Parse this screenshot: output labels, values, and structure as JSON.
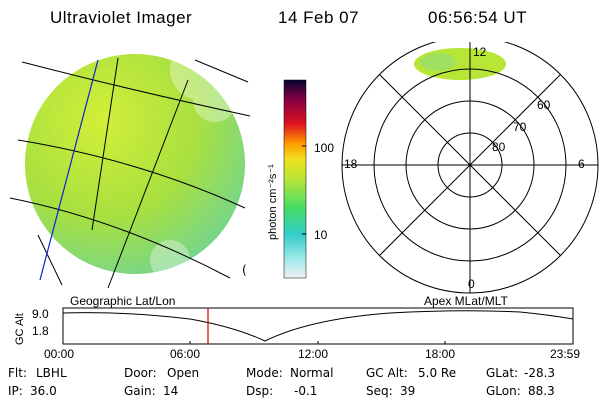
{
  "header": {
    "instrument": "Ultraviolet Imager",
    "date": "14 Feb 07",
    "time": "06:56:54 UT"
  },
  "colorbar": {
    "unit_label": "photon cm⁻²s⁻¹",
    "ticks": [
      "100",
      "10"
    ]
  },
  "polar_plot": {
    "mlt_labels": [
      "12",
      "18",
      "6",
      "0"
    ],
    "lat_labels": [
      "60",
      "70",
      "80"
    ]
  },
  "altitude_plot": {
    "left_title": "Geographic Lat/Lon",
    "right_title": "Apex  MLat/MLT",
    "y_axis_label": "GC Alt",
    "y_ticks": [
      "9.0",
      "1.8"
    ],
    "x_ticks": [
      "00:00",
      "06:00",
      "12:00",
      "18:00",
      "23:59"
    ]
  },
  "status": {
    "row1": [
      {
        "label": "Flt:",
        "value": "LBHL"
      },
      {
        "label": "Door:",
        "value": "Open"
      },
      {
        "label": "Mode:",
        "value": "Normal"
      },
      {
        "label": "GC Alt:",
        "value": "5.0 Re"
      },
      {
        "label": "GLat:",
        "value": "-28.3"
      }
    ],
    "row2": [
      {
        "label": "IP:",
        "value": "36.0"
      },
      {
        "label": "Gain:",
        "value": "14"
      },
      {
        "label": "Dsp:",
        "value": "-0.1"
      },
      {
        "label": "Seq:",
        "value": "39"
      },
      {
        "label": "GLon:",
        "value": "88.3"
      }
    ]
  },
  "colors": {
    "disk_base": "#b8e636",
    "marker": "#cc0000"
  }
}
